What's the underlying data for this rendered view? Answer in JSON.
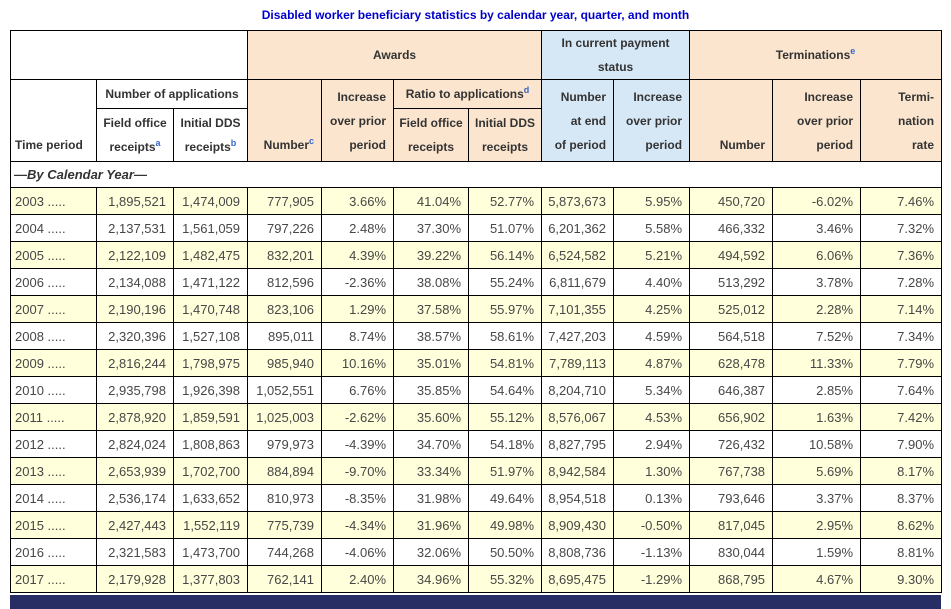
{
  "title": "Disabled worker beneficiary statistics by calendar year, quarter, and month",
  "colors": {
    "title_text": "#0000CC",
    "peach_header": "#FBE5CE",
    "blue_header": "#D6E8F6",
    "row_yellow": "#FFFFDB",
    "border": "#000000",
    "header_text": "#333333",
    "data_text": "#474747",
    "superscript": "#3366CC",
    "bottom_bar": "#272E64"
  },
  "table": {
    "group_headers": {
      "awards": "Awards",
      "payment_status": "In current payment\nstatus",
      "terminations": "Terminations",
      "terminations_sup": "e",
      "applications": "Number of applications",
      "ratio": "Ratio to applications",
      "ratio_sup": "d"
    },
    "column_headers": {
      "time_period": "Time period",
      "field_office": "Field office\nreceipts",
      "field_office_sup": "a",
      "initial_dds": "Initial DDS\nreceipts",
      "initial_dds_sup": "b",
      "awards_number": "Number",
      "awards_number_sup": "c",
      "awards_increase": "Increase\nover prior\nperiod",
      "ratio_field_office": "Field office\nreceipts",
      "ratio_initial_dds": "Initial DDS\nreceipts",
      "payment_number": "Number\nat end\nof period",
      "payment_increase": "Increase\nover prior\nperiod",
      "term_number": "Number",
      "term_increase": "Increase\nover prior\nperiod",
      "term_rate": "Termi-\nnation\nrate"
    },
    "section_label": "—By Calendar Year—",
    "rows": [
      [
        "2003 .....",
        "1,895,521",
        "1,474,009",
        "777,905",
        "3.66%",
        "41.04%",
        "52.77%",
        "5,873,673",
        "5.95%",
        "450,720",
        "-6.02%",
        "7.46%"
      ],
      [
        "2004 .....",
        "2,137,531",
        "1,561,059",
        "797,226",
        "2.48%",
        "37.30%",
        "51.07%",
        "6,201,362",
        "5.58%",
        "466,332",
        "3.46%",
        "7.32%"
      ],
      [
        "2005 .....",
        "2,122,109",
        "1,482,475",
        "832,201",
        "4.39%",
        "39.22%",
        "56.14%",
        "6,524,582",
        "5.21%",
        "494,592",
        "6.06%",
        "7.36%"
      ],
      [
        "2006 .....",
        "2,134,088",
        "1,471,122",
        "812,596",
        "-2.36%",
        "38.08%",
        "55.24%",
        "6,811,679",
        "4.40%",
        "513,292",
        "3.78%",
        "7.28%"
      ],
      [
        "2007 .....",
        "2,190,196",
        "1,470,748",
        "823,106",
        "1.29%",
        "37.58%",
        "55.97%",
        "7,101,355",
        "4.25%",
        "525,012",
        "2.28%",
        "7.14%"
      ],
      [
        "2008 .....",
        "2,320,396",
        "1,527,108",
        "895,011",
        "8.74%",
        "38.57%",
        "58.61%",
        "7,427,203",
        "4.59%",
        "564,518",
        "7.52%",
        "7.34%"
      ],
      [
        "2009 .....",
        "2,816,244",
        "1,798,975",
        "985,940",
        "10.16%",
        "35.01%",
        "54.81%",
        "7,789,113",
        "4.87%",
        "628,478",
        "11.33%",
        "7.79%"
      ],
      [
        "2010 .....",
        "2,935,798",
        "1,926,398",
        "1,052,551",
        "6.76%",
        "35.85%",
        "54.64%",
        "8,204,710",
        "5.34%",
        "646,387",
        "2.85%",
        "7.64%"
      ],
      [
        "2011 .....",
        "2,878,920",
        "1,859,591",
        "1,025,003",
        "-2.62%",
        "35.60%",
        "55.12%",
        "8,576,067",
        "4.53%",
        "656,902",
        "1.63%",
        "7.42%"
      ],
      [
        "2012 .....",
        "2,824,024",
        "1,808,863",
        "979,973",
        "-4.39%",
        "34.70%",
        "54.18%",
        "8,827,795",
        "2.94%",
        "726,432",
        "10.58%",
        "7.90%"
      ],
      [
        "2013 .....",
        "2,653,939",
        "1,702,700",
        "884,894",
        "-9.70%",
        "33.34%",
        "51.97%",
        "8,942,584",
        "1.30%",
        "767,738",
        "5.69%",
        "8.17%"
      ],
      [
        "2014 .....",
        "2,536,174",
        "1,633,652",
        "810,973",
        "-8.35%",
        "31.98%",
        "49.64%",
        "8,954,518",
        "0.13%",
        "793,646",
        "3.37%",
        "8.37%"
      ],
      [
        "2015 .....",
        "2,427,443",
        "1,552,119",
        "775,739",
        "-4.34%",
        "31.96%",
        "49.98%",
        "8,909,430",
        "-0.50%",
        "817,045",
        "2.95%",
        "8.62%"
      ],
      [
        "2016 .....",
        "2,321,583",
        "1,473,700",
        "744,268",
        "-4.06%",
        "32.06%",
        "50.50%",
        "8,808,736",
        "-1.13%",
        "830,044",
        "1.59%",
        "8.81%"
      ],
      [
        "2017 .....",
        "2,179,928",
        "1,377,803",
        "762,141",
        "2.40%",
        "34.96%",
        "55.32%",
        "8,695,475",
        "-1.29%",
        "868,795",
        "4.67%",
        "9.30%"
      ]
    ]
  }
}
